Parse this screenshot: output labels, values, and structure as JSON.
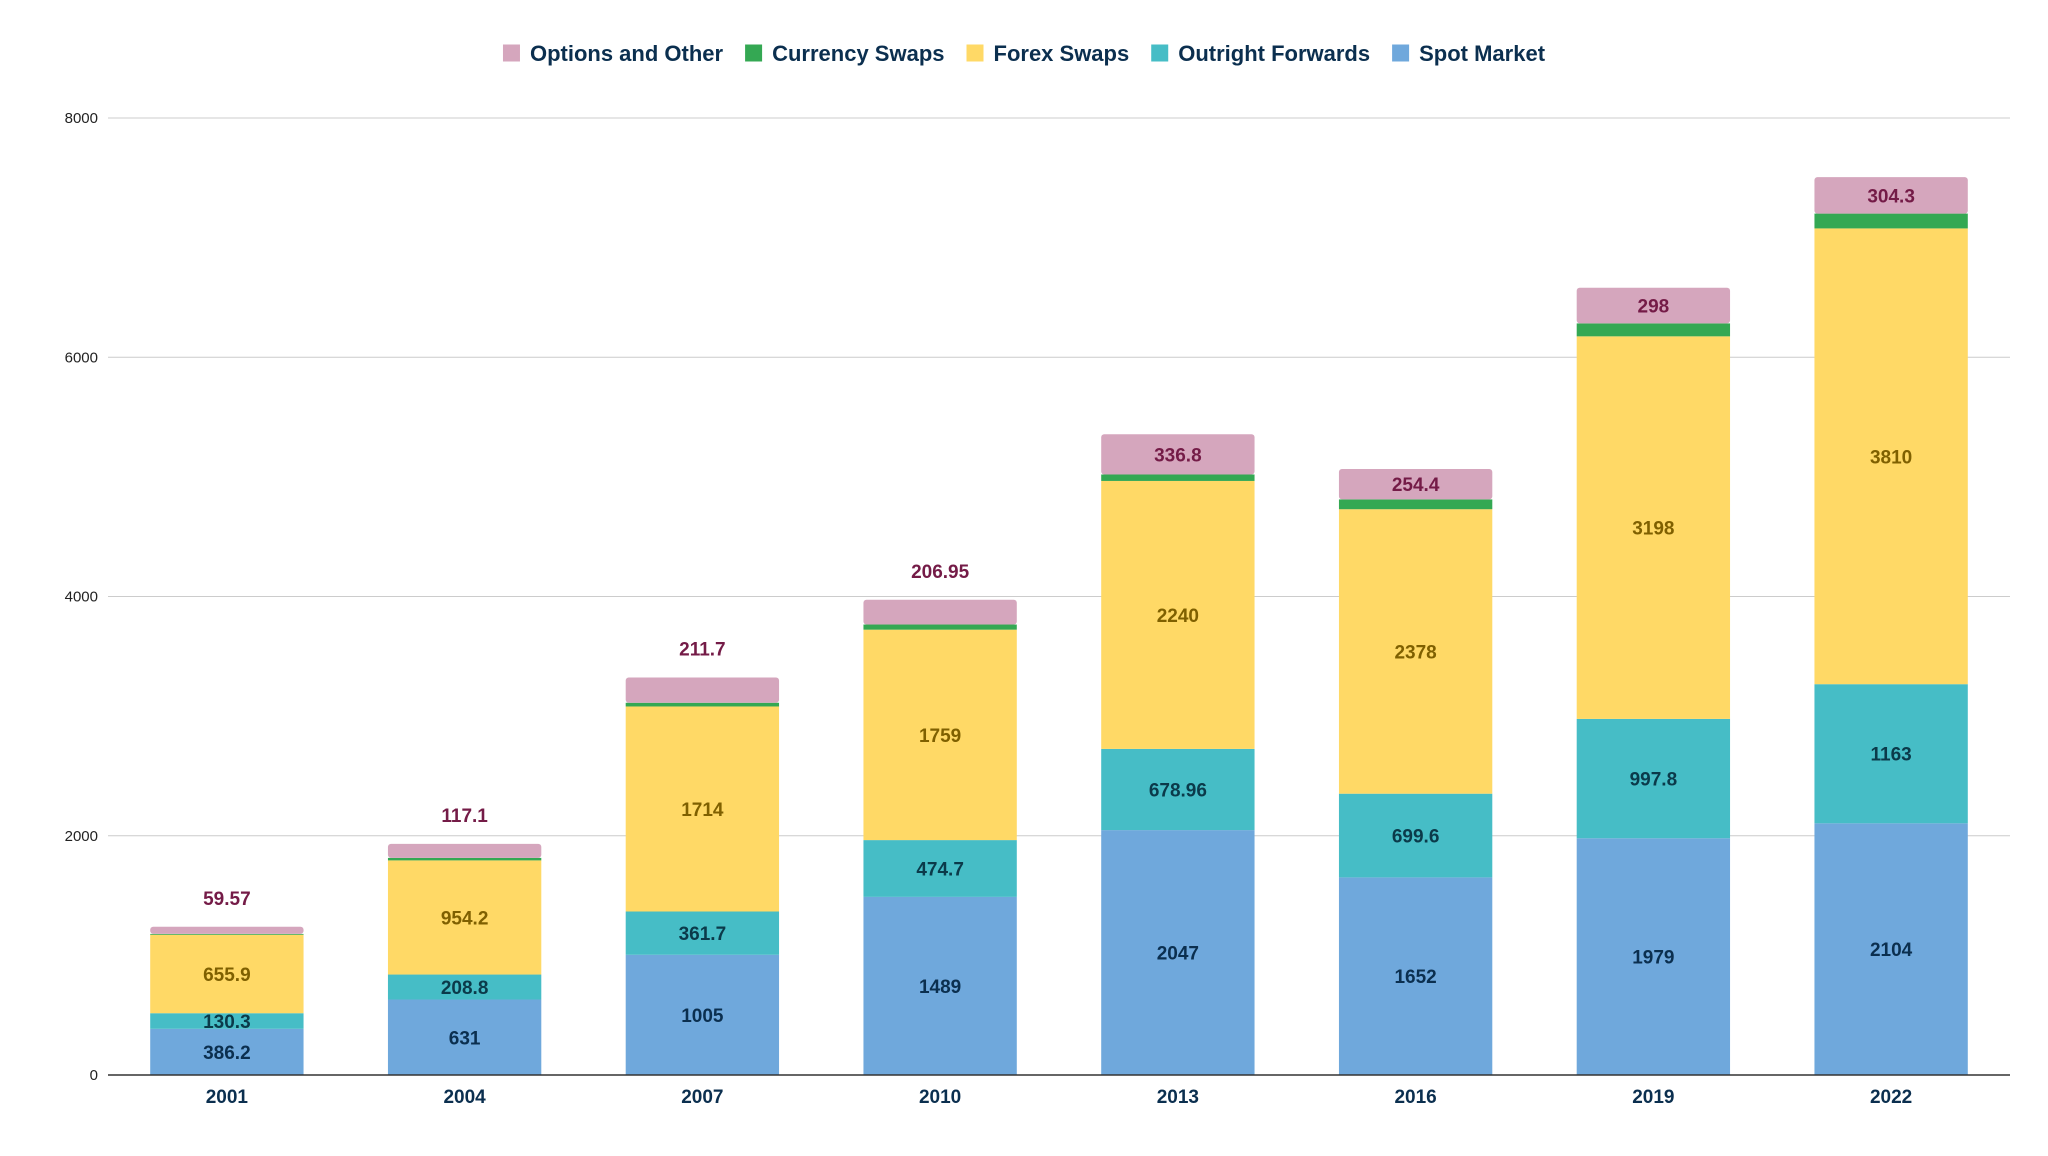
{
  "chart_data": {
    "type": "bar",
    "stacked": true,
    "title": "",
    "xlabel": "",
    "ylabel": "",
    "ylim": [
      0,
      8000
    ],
    "yticks": [
      0,
      2000,
      4000,
      6000,
      8000
    ],
    "grid": true,
    "legend_position": "top-center",
    "categories": [
      "2001",
      "2004",
      "2007",
      "2010",
      "2013",
      "2016",
      "2019",
      "2022"
    ],
    "series": [
      {
        "name": "Spot Market",
        "color": "#6fa8dc",
        "label_color": "#0b2f4f",
        "values": [
          386.2,
          631,
          1005,
          1489,
          2047,
          1652,
          1979,
          2104
        ],
        "labels": [
          "386.2",
          "631",
          "1005",
          "1489",
          "2047",
          "1652",
          "1979",
          "2104"
        ]
      },
      {
        "name": "Outright Forwards",
        "color": "#46bdc6",
        "label_color": "#0b3a4a",
        "values": [
          130.3,
          208.8,
          361.7,
          474.7,
          678.96,
          699.6,
          997.8,
          1163
        ],
        "labels": [
          "130.3",
          "208.8",
          "361.7",
          "474.7",
          "678.96",
          "699.6",
          "997.8",
          "1163"
        ]
      },
      {
        "name": "Forex Swaps",
        "color": "#ffd966",
        "label_color": "#7f6000",
        "values": [
          655.9,
          954.2,
          1714,
          1759,
          2240,
          2378,
          3198,
          3810
        ],
        "labels": [
          "655.9",
          "954.2",
          "1714",
          "1759",
          "2240",
          "2378",
          "3198",
          "3810"
        ]
      },
      {
        "name": "Currency Swaps",
        "color": "#34a853",
        "label_color": "#0b3d1a",
        "values": [
          7,
          21,
          31,
          43,
          54,
          82,
          108,
          124
        ],
        "labels": []
      },
      {
        "name": "Options and Other",
        "color": "#d5a6bd",
        "label_color": "#741b47",
        "values": [
          59.57,
          117.1,
          211.7,
          206.95,
          336.8,
          254.4,
          298,
          304.3
        ],
        "labels": [
          "59.57",
          "117.1",
          "211.7",
          "206.95",
          "336.8",
          "254.4",
          "298",
          "304.3"
        ],
        "label_outside": [
          true,
          true,
          true,
          true,
          false,
          false,
          false,
          false
        ]
      }
    ],
    "legend_order": [
      "Options and Other",
      "Currency Swaps",
      "Forex Swaps",
      "Outright Forwards",
      "Spot Market"
    ]
  }
}
